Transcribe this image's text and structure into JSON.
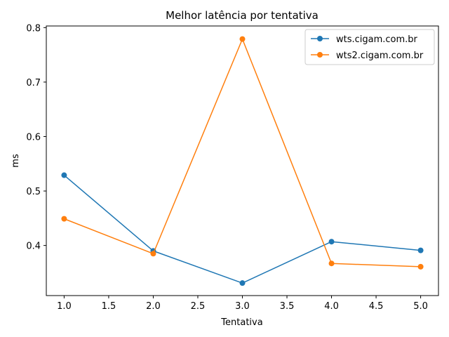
{
  "chart_data": {
    "type": "line",
    "title": "Melhor latência por tentativa",
    "xlabel": "Tentativa",
    "ylabel": "ms",
    "x": [
      1,
      2,
      3,
      4,
      5
    ],
    "xlim": [
      0.8,
      5.2
    ],
    "ylim": [
      0.308,
      0.803
    ],
    "xticks": [
      1.0,
      1.5,
      2.0,
      2.5,
      3.0,
      3.5,
      4.0,
      4.5,
      5.0
    ],
    "xtick_labels": [
      "1.0",
      "1.5",
      "2.0",
      "2.5",
      "3.0",
      "3.5",
      "4.0",
      "4.5",
      "5.0"
    ],
    "yticks": [
      0.4,
      0.5,
      0.6,
      0.7,
      0.8
    ],
    "ytick_labels": [
      "0.4",
      "0.5",
      "0.6",
      "0.7",
      "0.8"
    ],
    "grid": false,
    "legend_position": "top-right",
    "series": [
      {
        "name": "wts.cigam.com.br",
        "color": "#1f77b4",
        "values": [
          0.529,
          0.39,
          0.331,
          0.407,
          0.391
        ]
      },
      {
        "name": "wts2.cigam.com.br",
        "color": "#ff7f0e",
        "values": [
          0.449,
          0.385,
          0.779,
          0.367,
          0.361
        ]
      }
    ]
  }
}
